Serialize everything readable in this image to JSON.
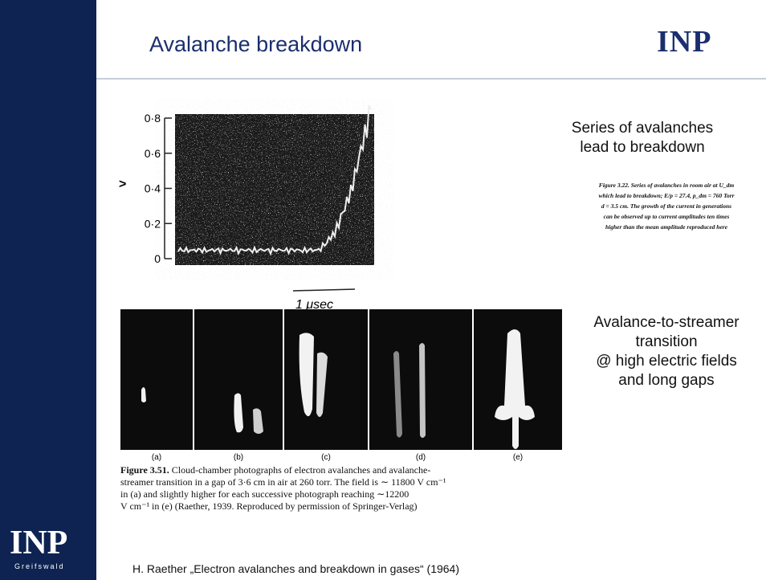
{
  "header": {
    "title": "Avalanche breakdown",
    "logo": "INP"
  },
  "figure_top": {
    "y_axis_label": ">",
    "y_ticks": [
      "0·8",
      "0·6",
      "0·4",
      "0·2",
      "0"
    ],
    "scale_label": "1 μsec"
  },
  "note_top": [
    "Series of avalanches",
    "lead to breakdown"
  ],
  "figure_top_caption": [
    "Figure 3.22. Series of avalanches in room air at U_dm",
    "which lead to breakdown; E/p = 27.4, p_dm = 760 Torr",
    "d = 3.5 cm. The growth of the current in generations",
    "can be observed up to current amplitudes ten times",
    "higher than the mean amplitude reproduced here"
  ],
  "photos": {
    "labels": [
      "(a)",
      "(b)",
      "(c)",
      "(d)",
      "(e)"
    ]
  },
  "figure_bottom_caption": {
    "label": "Figure 3.51.",
    "lines": [
      " Cloud-chamber photographs of electron avalanches and avalanche-",
      "streamer transition in a gap of 3·6 cm in air at 260 torr. The field is ∼ 11800 V cm⁻¹",
      "in (a) and slightly higher for each successive photograph reaching ∼12200",
      "V cm⁻¹ in (e) (Raether, 1939. Reproduced by permission of Springer-Verlag)"
    ]
  },
  "note_bottom": [
    "Avalance-to-streamer",
    "transition",
    "@ high electric fields",
    "and long gaps"
  ],
  "footer": {
    "logo": "INP",
    "logo_subtitle": "Greifswald",
    "reference": "H. Raether „Electron avalanches and breakdown in gases“ (1964)"
  }
}
